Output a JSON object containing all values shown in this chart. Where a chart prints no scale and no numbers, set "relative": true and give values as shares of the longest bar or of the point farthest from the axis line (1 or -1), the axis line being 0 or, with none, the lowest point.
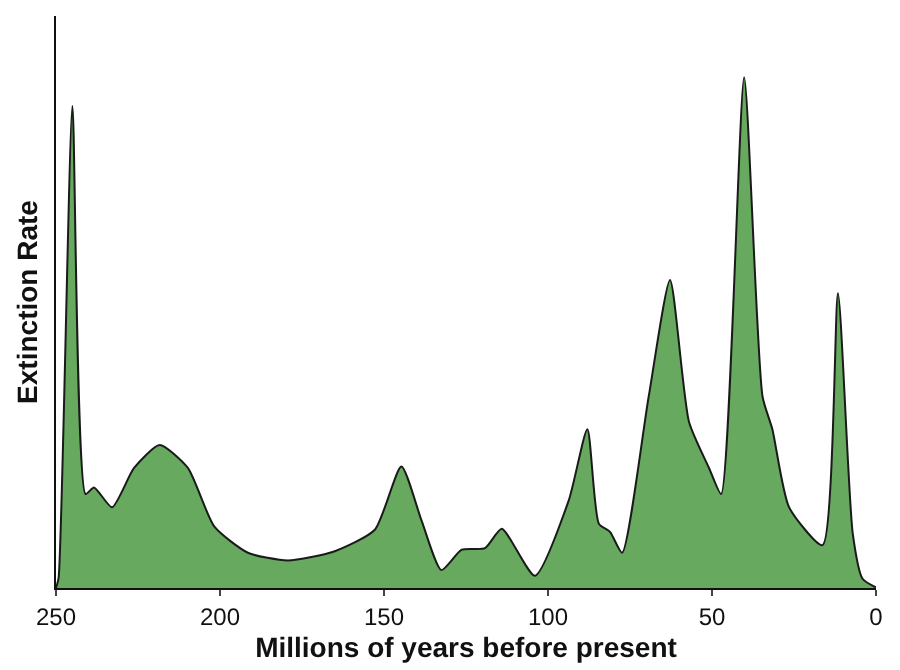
{
  "chart_data": {
    "type": "area",
    "relative": true,
    "xlabel": "Millions of years before present",
    "ylabel": "Extinction Rate",
    "x": [
      250,
      249.2,
      245,
      241,
      238.4,
      232.9,
      226.2,
      218.4,
      209.8,
      201.7,
      191.5,
      179.3,
      165,
      152.8,
      144.7,
      138.6,
      132.5,
      126.3,
      119.2,
      114.1,
      104,
      93.7,
      88,
      84.5,
      81.1,
      77.4,
      69.3,
      62.8,
      57,
      50.9,
      47.2,
      40.2,
      34.6,
      31.6,
      26.5,
      16.3,
      11.6,
      7.1,
      4.1,
      0
    ],
    "series": [
      {
        "color": "#66a95f",
        "values": [
          0,
          0.02,
          0.944,
          0.184,
          0.197,
          0.158,
          0.235,
          0.28,
          0.235,
          0.12,
          0.069,
          0.054,
          0.072,
          0.114,
          0.238,
          0.133,
          0.035,
          0.075,
          0.078,
          0.116,
          0.024,
          0.171,
          0.311,
          0.126,
          0.11,
          0.069,
          0.375,
          0.603,
          0.325,
          0.235,
          0.184,
          1.0,
          0.375,
          0.311,
          0.158,
          0.084,
          0.577,
          0.107,
          0.018,
          0.001
        ]
      }
    ],
    "xlim": [
      250,
      0
    ],
    "xticks": [
      250,
      200,
      150,
      100,
      50,
      0
    ]
  }
}
